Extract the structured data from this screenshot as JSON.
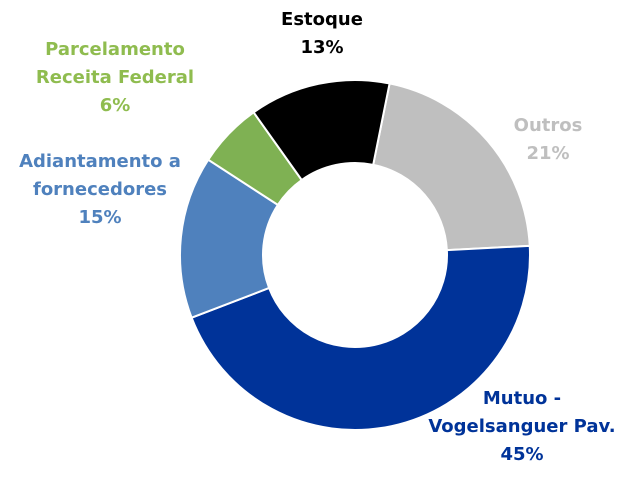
{
  "chart_data": {
    "type": "donut",
    "categories": [
      "Outros",
      "Mutuo - Vogelsanguer Pav.",
      "Adiantamento a fornecedores",
      "Parcelamento Receita Federal",
      "Estoque"
    ],
    "values": [
      21,
      45,
      15,
      6,
      13
    ],
    "value_labels": [
      "21%",
      "45%",
      "15%",
      "6%",
      "13%"
    ],
    "colors": [
      "#bfbfbf",
      "#003399",
      "#4f81bd",
      "#7fb153",
      "#000000"
    ],
    "label_colors": [
      "#bfbfbf",
      "#003399",
      "#4f81bd",
      "#8fbc4f",
      "#000000"
    ]
  }
}
